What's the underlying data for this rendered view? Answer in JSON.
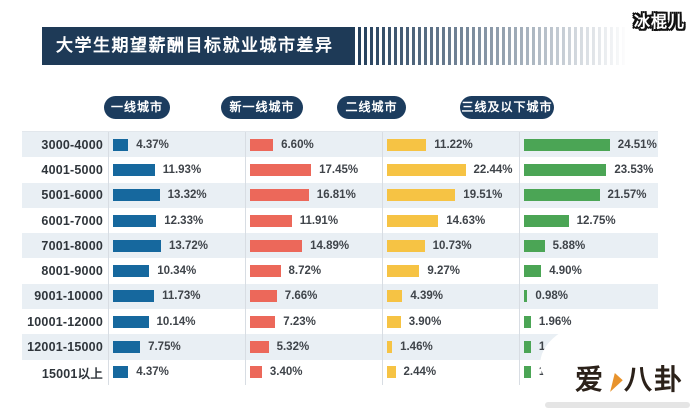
{
  "header": {
    "title": "大学生期望薪酬目标就业城市差异"
  },
  "watermarks": {
    "top_right": "冰棍儿",
    "bottom_right_part1": "爱",
    "bottom_right_part2": "八卦",
    "cone_icon_color": "#e8932c"
  },
  "colors": {
    "banner": "#1e3a57",
    "legend_pill": "#1c3c5e",
    "row_alt": "#e9eff4",
    "column_divider": "#d8dde3"
  },
  "chart_data": {
    "type": "bar",
    "orientation": "horizontal",
    "title": "大学生期望薪酬目标就业城市差异",
    "legend_position": "top",
    "value_suffix": "%",
    "xlim": [
      0,
      25
    ],
    "categories": [
      "3000-4000",
      "4001-5000",
      "5001-6000",
      "6001-7000",
      "7001-8000",
      "8001-9000",
      "9001-10000",
      "10001-12000",
      "12001-15000",
      "15001以上"
    ],
    "series": [
      {
        "name": "一线城市",
        "color": "#16689e",
        "values": [
          4.37,
          11.93,
          13.32,
          12.33,
          13.72,
          10.34,
          11.73,
          10.14,
          7.75,
          4.37
        ],
        "value_labels": [
          "4.37%",
          "11.93%",
          "13.32%",
          "12.33%",
          "13.72%",
          "10.34%",
          "11.73%",
          "10.14%",
          "7.75%",
          "4.37%"
        ]
      },
      {
        "name": "新一线城市",
        "color": "#ec685a",
        "values": [
          6.6,
          17.45,
          16.81,
          11.91,
          14.89,
          8.72,
          7.66,
          7.23,
          5.32,
          3.4
        ],
        "value_labels": [
          "6.60%",
          "17.45%",
          "16.81%",
          "11.91%",
          "14.89%",
          "8.72%",
          "7.66%",
          "7.23%",
          "5.32%",
          "3.40%"
        ]
      },
      {
        "name": "二线城市",
        "color": "#f6c344",
        "values": [
          11.22,
          22.44,
          19.51,
          14.63,
          10.73,
          9.27,
          4.39,
          3.9,
          1.46,
          2.44
        ],
        "value_labels": [
          "11.22%",
          "22.44%",
          "19.51%",
          "14.63%",
          "10.73%",
          "9.27%",
          "4.39%",
          "3.90%",
          "1.46%",
          "2.44%"
        ]
      },
      {
        "name": "三线及以下城市",
        "color": "#4ba555",
        "values": [
          24.51,
          23.53,
          21.57,
          12.75,
          5.88,
          4.9,
          0.98,
          1.96,
          1.96,
          1.96
        ],
        "value_labels": [
          "24.51%",
          "23.53%",
          "21.57%",
          "12.75%",
          "5.88%",
          "4.90%",
          "0.98%",
          "1.96%",
          "1.96%",
          "1.96%"
        ]
      }
    ]
  }
}
